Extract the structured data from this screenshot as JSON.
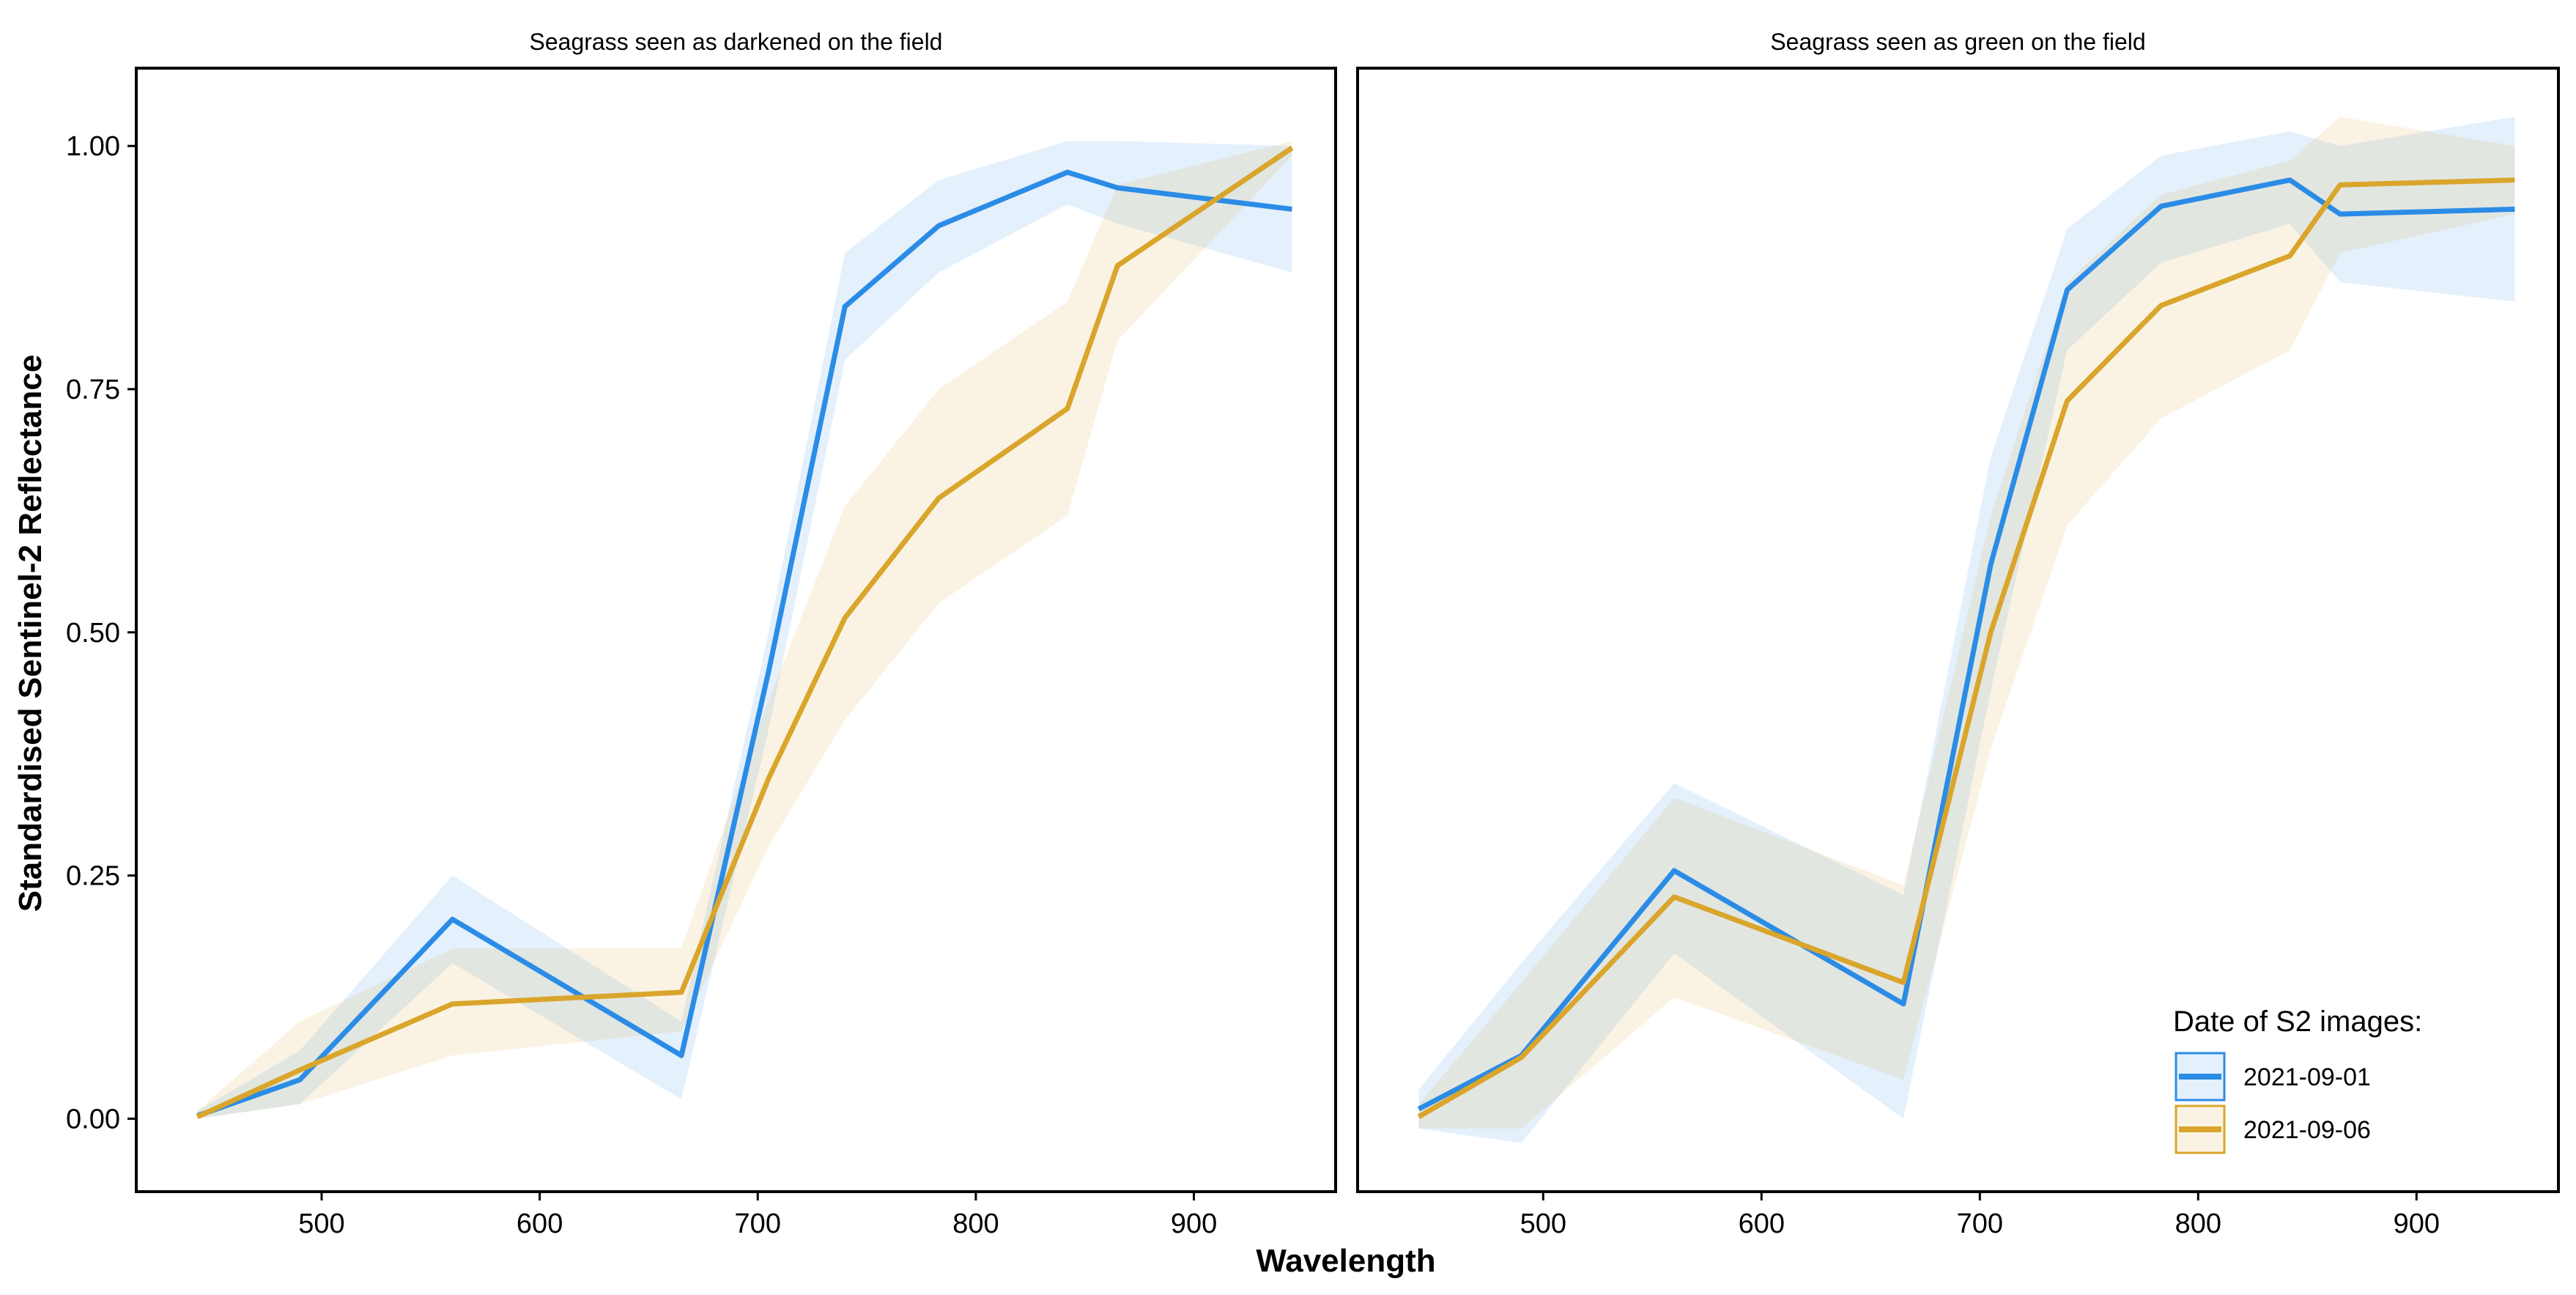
{
  "chart_data": {
    "type": "line",
    "xlabel": "Wavelength",
    "ylabel": "Standardised Sentinel-2 Reflectance",
    "xlim": [
      415,
      965
    ],
    "ylim": [
      -0.075,
      1.08
    ],
    "xticks": [
      500,
      600,
      700,
      800,
      900
    ],
    "xtick_labels": [
      "500",
      "600",
      "700",
      "800",
      "900"
    ],
    "yticks": [
      0,
      0.25,
      0.5,
      0.75,
      1.0
    ],
    "ytick_labels": [
      "0.00",
      "0.25",
      "0.50",
      "0.75",
      "1.00"
    ],
    "grid": false,
    "legend": {
      "title": "Date of S2 images:",
      "position": "bottom-right of right panel",
      "entries": [
        "2021-09-01",
        "2021-09-06"
      ]
    },
    "colors": {
      "2021-09-01": "#2B8CE6",
      "2021-09-06": "#D9A52B"
    },
    "x": [
      443,
      490,
      560,
      665,
      705,
      740,
      783,
      842,
      865,
      945
    ],
    "panels": [
      {
        "title": "Seagrass seen as darkened on the field",
        "series": [
          {
            "name": "2021-09-01",
            "values": [
              0.003,
              0.04,
              0.205,
              0.065,
              0.46,
              0.835,
              0.918,
              0.973,
              0.957,
              0.935
            ],
            "lower": [
              0.0,
              0.015,
              0.16,
              0.02,
              0.4,
              0.78,
              0.87,
              0.94,
              0.92,
              0.87
            ],
            "upper": [
              0.008,
              0.07,
              0.25,
              0.1,
              0.5,
              0.89,
              0.965,
              1.005,
              1.005,
              1.0
            ]
          },
          {
            "name": "2021-09-06",
            "values": [
              0.002,
              0.05,
              0.118,
              0.13,
              0.35,
              0.515,
              0.638,
              0.73,
              0.877,
              0.998
            ],
            "lower": [
              0.0,
              0.015,
              0.065,
              0.09,
              0.28,
              0.41,
              0.53,
              0.62,
              0.8,
              0.99
            ],
            "upper": [
              0.008,
              0.1,
              0.175,
              0.175,
              0.43,
              0.63,
              0.75,
              0.84,
              0.96,
              1.005
            ]
          }
        ]
      },
      {
        "title": "Seagrass seen as green on the field",
        "series": [
          {
            "name": "2021-09-01",
            "values": [
              0.01,
              0.065,
              0.255,
              0.118,
              0.57,
              0.852,
              0.938,
              0.965,
              0.93,
              0.935
            ],
            "lower": [
              -0.01,
              -0.025,
              0.17,
              0.0,
              0.44,
              0.79,
              0.88,
              0.92,
              0.86,
              0.84
            ],
            "upper": [
              0.03,
              0.16,
              0.345,
              0.23,
              0.68,
              0.915,
              0.99,
              1.015,
              1.0,
              1.03
            ]
          },
          {
            "name": "2021-09-06",
            "values": [
              0.002,
              0.063,
              0.228,
              0.14,
              0.5,
              0.738,
              0.836,
              0.887,
              0.96,
              0.965
            ],
            "lower": [
              -0.01,
              -0.01,
              0.125,
              0.04,
              0.38,
              0.61,
              0.72,
              0.79,
              0.89,
              0.93
            ],
            "upper": [
              0.015,
              0.14,
              0.33,
              0.24,
              0.62,
              0.86,
              0.95,
              0.985,
              1.03,
              1.0
            ]
          }
        ]
      }
    ]
  }
}
